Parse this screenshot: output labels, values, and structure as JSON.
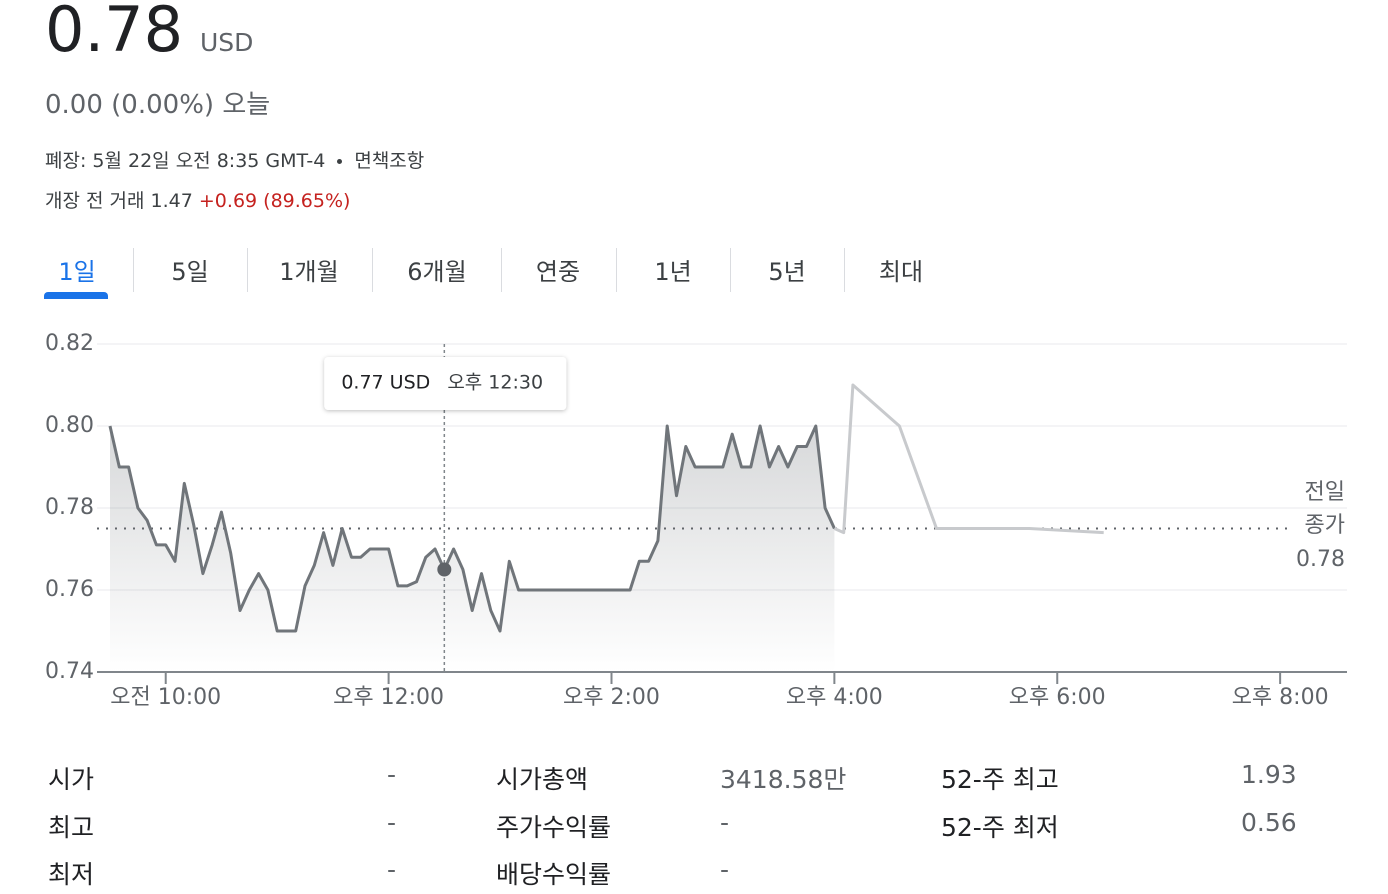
{
  "header": {
    "price": "0.78",
    "currency": "USD",
    "change": "0.00 (0.00%)",
    "change_period": "오늘",
    "status": "폐장: 5월 22일 오전 8:35 GMT-4",
    "disclaimer": "면책조항",
    "premarket_label": "개장 전 거래",
    "premarket_price": "1.47",
    "premarket_change": "+0.69 (89.65%)",
    "premarket_change_color": "#c5221f"
  },
  "tabs": {
    "items": [
      "1일",
      "5일",
      "1개월",
      "6개월",
      "연중",
      "1년",
      "5년",
      "최대"
    ],
    "active": 0,
    "active_color": "#1a73e8"
  },
  "chart_data": {
    "type": "line",
    "xlim": [
      563,
      1236
    ],
    "ylim": [
      0.74,
      0.82
    ],
    "xticks": [
      {
        "value": 600,
        "label": "오전 10:00"
      },
      {
        "value": 720,
        "label": "오후 12:00"
      },
      {
        "value": 840,
        "label": "오후 2:00"
      },
      {
        "value": 960,
        "label": "오후 4:00"
      },
      {
        "value": 1080,
        "label": "오후 6:00"
      },
      {
        "value": 1200,
        "label": "오후 8:00"
      }
    ],
    "yticks": [
      0.74,
      0.76,
      0.78,
      {
        "value": 0.8,
        "label": "0.80"
      },
      0.82
    ],
    "grid": true,
    "series": [
      {
        "color": "#70757a",
        "fill_area": true,
        "x": [
          570,
          575,
          580,
          585,
          590,
          595,
          600,
          605,
          610,
          615,
          620,
          625,
          630,
          635,
          640,
          645,
          650,
          655,
          660,
          665,
          670,
          675,
          680,
          685,
          690,
          695,
          700,
          705,
          710,
          715,
          720,
          725,
          730,
          735,
          740,
          745,
          750,
          755,
          760,
          765,
          770,
          775,
          780,
          785,
          790,
          795,
          800,
          805,
          810,
          815,
          820,
          825,
          830,
          835,
          840,
          845,
          850,
          855,
          860,
          865,
          870,
          875,
          880,
          885,
          890,
          895,
          900,
          905,
          910,
          915,
          920,
          925,
          930,
          935,
          940,
          945,
          950,
          955,
          960
        ],
        "values": [
          0.8,
          0.79,
          0.79,
          0.78,
          0.777,
          0.771,
          0.771,
          0.767,
          0.786,
          0.776,
          0.764,
          0.771,
          0.779,
          0.769,
          0.755,
          0.76,
          0.764,
          0.76,
          0.75,
          0.75,
          0.75,
          0.761,
          0.766,
          0.774,
          0.766,
          0.775,
          0.768,
          0.768,
          0.77,
          0.77,
          0.77,
          0.761,
          0.761,
          0.762,
          0.768,
          0.77,
          0.765,
          0.77,
          0.765,
          0.755,
          0.764,
          0.755,
          0.75,
          0.767,
          0.76,
          0.76,
          0.76,
          0.76,
          0.76,
          0.76,
          0.76,
          0.76,
          0.76,
          0.76,
          0.76,
          0.76,
          0.76,
          0.767,
          0.767,
          0.772,
          0.8,
          0.783,
          0.795,
          0.79,
          0.79,
          0.79,
          0.79,
          0.798,
          0.79,
          0.79,
          0.8,
          0.79,
          0.795,
          0.79,
          0.795,
          0.795,
          0.8,
          0.78,
          0.775
        ]
      },
      {
        "color": "#c8cacd",
        "fill_area": false,
        "x": [
          960,
          965,
          970,
          995,
          1015,
          1025,
          1065,
          1105
        ],
        "values": [
          0.775,
          0.774,
          0.81,
          0.8,
          0.775,
          0.775,
          0.775,
          0.774
        ]
      }
    ],
    "prev_close": {
      "value": 0.775,
      "label": "0.78",
      "title_lines": [
        "전일",
        "종가"
      ]
    },
    "tooltip": {
      "x": 750,
      "value": 0.765,
      "value_label": "0.77 USD",
      "time_label": "오후 12:30"
    }
  },
  "stats": [
    [
      [
        "시가",
        "-"
      ],
      [
        "최고",
        "-"
      ],
      [
        "최저",
        "-"
      ]
    ],
    [
      [
        "시가총액",
        "3418.58만"
      ],
      [
        "주가수익률",
        "-"
      ],
      [
        "배당수익률",
        "-"
      ]
    ],
    [
      [
        "52-주 최고",
        "1.93"
      ],
      [
        "52-주 최저",
        "0.56"
      ]
    ]
  ]
}
